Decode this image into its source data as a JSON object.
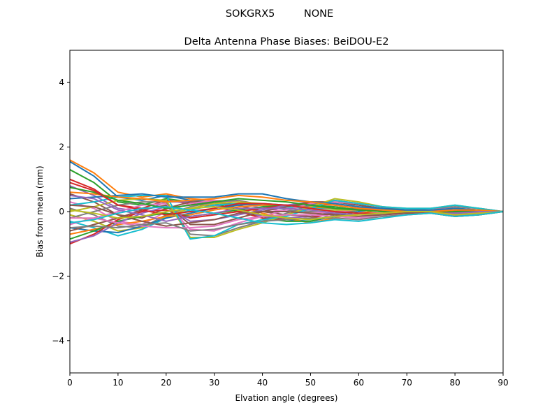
{
  "figure": {
    "suptitle": "SOKGRX5         NONE"
  },
  "chart_data": {
    "type": "line",
    "title": "Delta Antenna Phase Biases: BeiDOU-E2",
    "xlabel": "Elvation angle (degrees)",
    "ylabel": "Bias from mean (mm)",
    "xlim": [
      0,
      90
    ],
    "ylim": [
      -5,
      5
    ],
    "xticks": [
      0,
      10,
      20,
      30,
      40,
      50,
      60,
      70,
      80,
      90
    ],
    "yticks": [
      -4,
      -2,
      0,
      2,
      4
    ],
    "xtick_labels": [
      "0",
      "10",
      "20",
      "30",
      "40",
      "50",
      "60",
      "70",
      "80",
      "90"
    ],
    "ytick_labels": [
      "−4",
      "−2",
      "0",
      "2",
      "4"
    ],
    "grid": false,
    "legend": "none",
    "x": [
      0,
      5,
      10,
      15,
      20,
      25,
      30,
      35,
      40,
      45,
      50,
      55,
      60,
      65,
      70,
      75,
      80,
      85,
      90
    ],
    "colors": [
      "#1f77b4",
      "#ff7f0e",
      "#2ca02c",
      "#d62728",
      "#9467bd",
      "#8c564b",
      "#e377c2",
      "#7f7f7f",
      "#bcbd22",
      "#17becf"
    ],
    "series": [
      {
        "values": [
          1.55,
          1.1,
          0.45,
          0.35,
          0.5,
          0.35,
          0.3,
          0.1,
          -0.15,
          -0.25,
          -0.3,
          -0.15,
          0.0,
          0.1,
          0.05,
          -0.05,
          -0.1,
          -0.05,
          0.0
        ]
      },
      {
        "values": [
          1.6,
          1.2,
          0.6,
          0.45,
          0.55,
          0.4,
          0.35,
          0.2,
          -0.05,
          -0.2,
          -0.35,
          -0.2,
          -0.05,
          0.05,
          0.05,
          0.0,
          -0.1,
          -0.05,
          0.0
        ]
      },
      {
        "values": [
          1.3,
          0.9,
          0.3,
          0.2,
          0.4,
          0.3,
          0.25,
          0.05,
          -0.2,
          -0.3,
          -0.3,
          -0.1,
          0.05,
          0.1,
          0.05,
          -0.05,
          -0.15,
          -0.1,
          0.0
        ]
      },
      {
        "values": [
          1.0,
          0.7,
          0.2,
          0.1,
          0.35,
          0.25,
          0.15,
          0.0,
          -0.2,
          -0.25,
          -0.2,
          -0.05,
          0.1,
          0.1,
          0.05,
          -0.05,
          -0.15,
          -0.1,
          0.0
        ]
      },
      {
        "values": [
          0.8,
          0.5,
          0.1,
          0.0,
          0.3,
          0.3,
          0.2,
          0.05,
          -0.15,
          -0.2,
          -0.15,
          0.0,
          0.1,
          0.1,
          0.05,
          0.0,
          -0.1,
          -0.05,
          0.0
        ]
      },
      {
        "values": [
          0.55,
          0.3,
          -0.1,
          -0.2,
          0.1,
          0.3,
          0.3,
          0.2,
          0.0,
          -0.1,
          -0.15,
          -0.05,
          0.05,
          0.1,
          0.05,
          0.0,
          -0.1,
          -0.05,
          0.0
        ]
      },
      {
        "values": [
          0.3,
          0.1,
          -0.3,
          -0.4,
          0.0,
          0.25,
          0.35,
          0.3,
          0.1,
          0.0,
          -0.05,
          0.0,
          0.05,
          0.1,
          0.05,
          0.0,
          -0.05,
          -0.05,
          0.0
        ]
      },
      {
        "values": [
          0.1,
          -0.1,
          -0.45,
          -0.5,
          -0.1,
          0.15,
          0.3,
          0.35,
          0.2,
          0.05,
          0.0,
          0.05,
          0.1,
          0.1,
          0.05,
          0.0,
          -0.05,
          -0.05,
          0.0
        ]
      },
      {
        "values": [
          -0.1,
          -0.3,
          -0.6,
          -0.5,
          -0.15,
          0.1,
          0.25,
          0.3,
          0.25,
          0.1,
          0.05,
          0.05,
          0.05,
          0.05,
          0.05,
          0.0,
          -0.05,
          -0.05,
          0.0
        ]
      },
      {
        "values": [
          -0.3,
          -0.5,
          -0.75,
          -0.55,
          -0.2,
          0.05,
          0.2,
          0.25,
          0.2,
          0.15,
          0.1,
          0.1,
          0.05,
          0.05,
          0.05,
          0.0,
          -0.05,
          -0.05,
          0.0
        ]
      },
      {
        "values": [
          -0.5,
          -0.6,
          -0.65,
          -0.45,
          -0.2,
          -0.05,
          0.1,
          0.2,
          0.25,
          0.2,
          0.15,
          0.1,
          0.05,
          0.05,
          0.0,
          0.0,
          0.0,
          0.0,
          0.0
        ]
      },
      {
        "values": [
          -0.7,
          -0.55,
          -0.4,
          -0.3,
          -0.15,
          -0.1,
          0.05,
          0.15,
          0.2,
          0.2,
          0.15,
          0.1,
          0.05,
          0.0,
          0.0,
          0.0,
          0.0,
          0.0,
          0.0
        ]
      },
      {
        "values": [
          -0.85,
          -0.6,
          -0.3,
          -0.15,
          -0.05,
          -0.15,
          -0.05,
          0.05,
          0.15,
          0.2,
          0.2,
          0.15,
          0.05,
          0.0,
          -0.05,
          0.0,
          0.05,
          0.0,
          0.0
        ]
      },
      {
        "values": [
          -1.0,
          -0.7,
          -0.25,
          0.0,
          0.05,
          -0.2,
          -0.1,
          0.0,
          0.1,
          0.2,
          0.25,
          0.2,
          0.1,
          0.0,
          -0.05,
          0.0,
          0.05,
          0.05,
          0.0
        ]
      },
      {
        "values": [
          -0.95,
          -0.75,
          -0.35,
          -0.05,
          0.15,
          -0.3,
          -0.25,
          -0.1,
          0.05,
          0.2,
          0.3,
          0.25,
          0.15,
          0.05,
          -0.05,
          0.0,
          0.1,
          0.05,
          0.0
        ]
      },
      {
        "values": [
          -0.6,
          -0.4,
          -0.2,
          0.05,
          0.2,
          -0.4,
          -0.4,
          -0.2,
          0.0,
          0.15,
          0.3,
          0.3,
          0.2,
          0.1,
          0.0,
          0.05,
          0.1,
          0.05,
          0.0
        ]
      },
      {
        "values": [
          -0.4,
          -0.2,
          0.0,
          0.2,
          0.25,
          -0.55,
          -0.6,
          -0.35,
          -0.15,
          0.05,
          0.25,
          0.3,
          0.25,
          0.15,
          0.05,
          0.05,
          0.15,
          0.1,
          0.0
        ]
      },
      {
        "values": [
          -0.2,
          0.0,
          0.2,
          0.3,
          0.3,
          -0.7,
          -0.75,
          -0.5,
          -0.3,
          -0.05,
          0.2,
          0.35,
          0.25,
          0.15,
          0.05,
          0.1,
          0.15,
          0.1,
          0.0
        ]
      },
      {
        "values": [
          0.0,
          0.15,
          0.35,
          0.4,
          0.35,
          -0.8,
          -0.8,
          -0.55,
          -0.35,
          -0.1,
          0.15,
          0.4,
          0.3,
          0.15,
          0.1,
          0.1,
          0.2,
          0.1,
          0.0
        ]
      },
      {
        "values": [
          0.2,
          0.3,
          0.45,
          0.5,
          0.5,
          -0.85,
          -0.75,
          -0.4,
          -0.25,
          -0.15,
          0.1,
          0.35,
          0.25,
          0.15,
          0.1,
          0.1,
          0.2,
          0.1,
          0.0
        ]
      },
      {
        "values": [
          0.4,
          0.45,
          0.5,
          0.55,
          0.45,
          0.45,
          0.45,
          0.55,
          0.55,
          0.4,
          0.3,
          0.25,
          0.15,
          0.1,
          0.05,
          0.05,
          0.1,
          0.05,
          0.0
        ]
      },
      {
        "values": [
          0.6,
          0.55,
          0.45,
          0.4,
          0.3,
          0.35,
          0.4,
          0.5,
          0.45,
          0.35,
          0.3,
          0.2,
          0.1,
          0.05,
          0.0,
          0.0,
          0.05,
          0.05,
          0.0
        ]
      },
      {
        "values": [
          0.75,
          0.6,
          0.35,
          0.25,
          0.1,
          0.2,
          0.3,
          0.4,
          0.35,
          0.3,
          0.2,
          0.1,
          0.05,
          0.0,
          -0.05,
          -0.05,
          0.0,
          0.0,
          0.0
        ]
      },
      {
        "values": [
          0.9,
          0.65,
          0.2,
          0.05,
          -0.1,
          0.0,
          0.1,
          0.25,
          0.25,
          0.2,
          0.1,
          0.0,
          -0.05,
          -0.05,
          -0.05,
          -0.05,
          -0.05,
          0.0,
          0.0
        ]
      },
      {
        "values": [
          0.5,
          0.4,
          0.05,
          -0.1,
          -0.3,
          -0.15,
          -0.05,
          0.1,
          0.1,
          0.1,
          0.05,
          -0.05,
          -0.1,
          -0.1,
          -0.05,
          -0.05,
          -0.05,
          0.0,
          0.0
        ]
      },
      {
        "values": [
          0.2,
          0.15,
          -0.1,
          -0.3,
          -0.45,
          -0.35,
          -0.25,
          -0.05,
          0.0,
          0.0,
          -0.05,
          -0.1,
          -0.15,
          -0.1,
          -0.05,
          -0.05,
          -0.1,
          -0.05,
          0.0
        ]
      },
      {
        "values": [
          -0.2,
          -0.2,
          -0.35,
          -0.45,
          -0.5,
          -0.5,
          -0.45,
          -0.25,
          -0.15,
          -0.1,
          -0.1,
          -0.15,
          -0.2,
          -0.15,
          -0.1,
          -0.05,
          -0.1,
          -0.05,
          0.0
        ]
      },
      {
        "values": [
          -0.5,
          -0.45,
          -0.5,
          -0.4,
          -0.35,
          -0.6,
          -0.55,
          -0.4,
          -0.3,
          -0.25,
          -0.2,
          -0.2,
          -0.25,
          -0.15,
          -0.1,
          -0.05,
          -0.15,
          -0.1,
          0.0
        ]
      },
      {
        "values": [
          0.05,
          -0.05,
          -0.2,
          -0.15,
          0.0,
          0.1,
          0.15,
          0.05,
          -0.1,
          -0.2,
          -0.25,
          -0.15,
          -0.1,
          -0.05,
          0.0,
          0.0,
          -0.1,
          -0.05,
          0.0
        ]
      },
      {
        "values": [
          -0.35,
          -0.25,
          -0.05,
          0.1,
          0.15,
          0.05,
          -0.05,
          -0.2,
          -0.35,
          -0.4,
          -0.35,
          -0.25,
          -0.3,
          -0.2,
          -0.1,
          -0.05,
          -0.15,
          -0.1,
          0.0
        ]
      }
    ]
  }
}
